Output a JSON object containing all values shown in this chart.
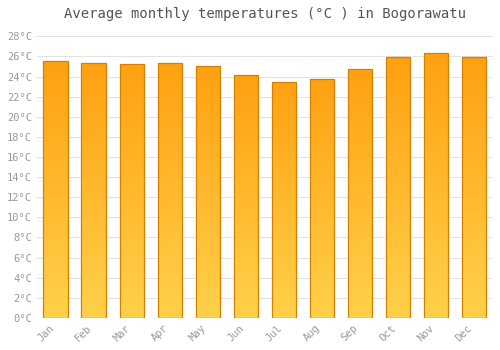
{
  "title": "Average monthly temperatures (°C ) in Bogorawatu",
  "months": [
    "Jan",
    "Feb",
    "Mar",
    "Apr",
    "May",
    "Jun",
    "Jul",
    "Aug",
    "Sep",
    "Oct",
    "Nov",
    "Dec"
  ],
  "values": [
    25.5,
    25.3,
    25.2,
    25.3,
    25.0,
    24.2,
    23.5,
    23.8,
    24.8,
    25.9,
    26.3,
    25.9
  ],
  "bar_color_bottom": "#FFD04A",
  "bar_color_top": "#FFA010",
  "bar_edge_color": "#D48000",
  "yticks": [
    0,
    2,
    4,
    6,
    8,
    10,
    12,
    14,
    16,
    18,
    20,
    22,
    24,
    26,
    28
  ],
  "ytick_labels": [
    "0°C",
    "2°C",
    "4°C",
    "6°C",
    "8°C",
    "10°C",
    "12°C",
    "14°C",
    "16°C",
    "18°C",
    "20°C",
    "22°C",
    "24°C",
    "26°C",
    "28°C"
  ],
  "ylim": [
    0,
    29
  ],
  "bg_color": "#FFFFFF",
  "grid_color": "#DDDDDD",
  "title_fontsize": 10,
  "tick_fontsize": 7.5,
  "tick_color": "#999999",
  "font_family": "monospace"
}
